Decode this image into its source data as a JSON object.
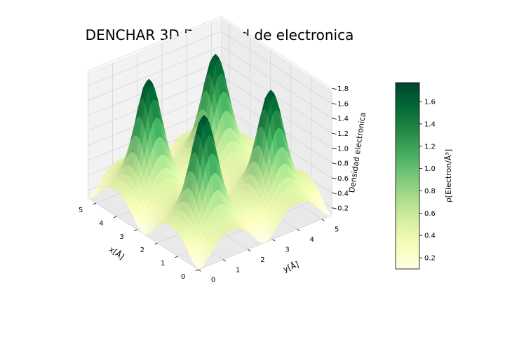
{
  "chart_data": {
    "type": "surface3d",
    "title": "DENCHAR 3D Densidad de electronica",
    "xlabel": "x[Å]",
    "ylabel": "y[Å]",
    "zlabel": "Densidad electronica",
    "colorbar_label": "ρ[Electron/Å³]",
    "colormap": "YlGn",
    "xlim": [
      0,
      5.4
    ],
    "ylim": [
      0,
      5.4
    ],
    "zlim": [
      0.1,
      1.77
    ],
    "x_ticks": [
      "0",
      "1",
      "2",
      "3",
      "4",
      "5"
    ],
    "y_ticks": [
      "0",
      "1",
      "2",
      "3",
      "4",
      "5"
    ],
    "z_ticks": [
      "0.2",
      "0.4",
      "0.6",
      "0.8",
      "1.0",
      "1.2",
      "1.4",
      "1.6",
      "1.8"
    ],
    "colorbar_ticks": [
      "0.2",
      "0.4",
      "0.6",
      "0.8",
      "1.0",
      "1.2",
      "1.4",
      "1.6"
    ],
    "peaks": [
      {
        "x": 1.35,
        "y": 1.35,
        "density": 1.75
      },
      {
        "x": 1.35,
        "y": 4.05,
        "density": 1.72
      },
      {
        "x": 4.05,
        "y": 1.35,
        "density": 1.75
      },
      {
        "x": 4.05,
        "y": 4.05,
        "density": 1.72
      }
    ],
    "background_density": 0.45,
    "min_density": 0.1,
    "grid": true
  }
}
